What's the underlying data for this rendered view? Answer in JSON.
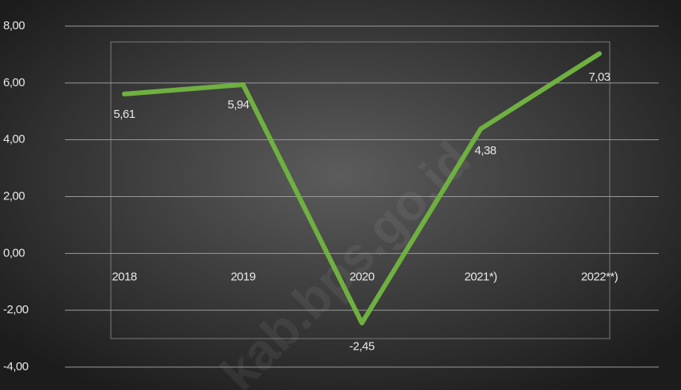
{
  "chart_data": {
    "type": "line",
    "categories": [
      "2018",
      "2019",
      "2020",
      "2021*)",
      "2022**)"
    ],
    "series": [
      {
        "color": "#6fb040",
        "values": [
          5.61,
          5.94,
          -2.45,
          4.38,
          7.03
        ],
        "value_labels": [
          "5,61",
          "5,94",
          "-2,45",
          "4,38",
          "7,03"
        ]
      }
    ],
    "ylim": [
      -4,
      8
    ],
    "yticks": [
      {
        "value": -4,
        "label": "-4,00"
      },
      {
        "value": -2,
        "label": "-2,00"
      },
      {
        "value": 0,
        "label": "0,00"
      },
      {
        "value": 2,
        "label": "2,00"
      },
      {
        "value": 4,
        "label": "4,00"
      },
      {
        "value": 6,
        "label": "6,00"
      },
      {
        "value": 8,
        "label": "8,00"
      }
    ],
    "grid": true,
    "watermark": "kab.bps.go.id"
  }
}
